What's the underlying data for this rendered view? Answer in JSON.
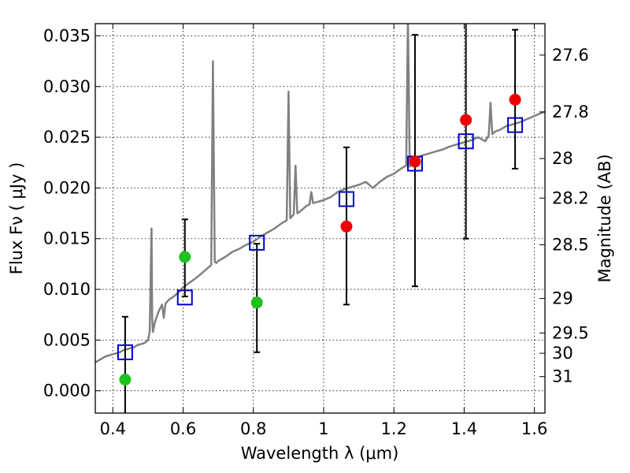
{
  "chart_data": {
    "type": "scatter",
    "title": "",
    "xlabel": "Wavelength  λ (μm)",
    "ylabel": "Flux  Fν  ( μJy )",
    "y2label": "Magnitude (AB)",
    "xlim": [
      0.35,
      1.63
    ],
    "ylim": [
      -0.0022,
      0.0362
    ],
    "grid": true,
    "x_ticks": [
      {
        "value": 0.4,
        "label": "0.4"
      },
      {
        "value": 0.6,
        "label": "0.6"
      },
      {
        "value": 0.8,
        "label": "0.8"
      },
      {
        "value": 1.0,
        "label": "1"
      },
      {
        "value": 1.2,
        "label": "1.2"
      },
      {
        "value": 1.4,
        "label": "1.4"
      },
      {
        "value": 1.6,
        "label": "1.6"
      }
    ],
    "y_ticks": [
      {
        "value": 0.0,
        "label": "0.000"
      },
      {
        "value": 0.005,
        "label": "0.005"
      },
      {
        "value": 0.01,
        "label": "0.010"
      },
      {
        "value": 0.015,
        "label": "0.015"
      },
      {
        "value": 0.02,
        "label": "0.020"
      },
      {
        "value": 0.025,
        "label": "0.025"
      },
      {
        "value": 0.03,
        "label": "0.030"
      },
      {
        "value": 0.035,
        "label": "0.035"
      }
    ],
    "mag_ticks": [
      {
        "flux": 0.0331,
        "label": "27.6"
      },
      {
        "flux": 0.0275,
        "label": "27.8"
      },
      {
        "flux": 0.0229,
        "label": "28"
      },
      {
        "flux": 0.019,
        "label": "28.2"
      },
      {
        "flux": 0.0144,
        "label": "28.5"
      },
      {
        "flux": 0.0091,
        "label": "29"
      },
      {
        "flux": 0.0057,
        "label": "29.5"
      },
      {
        "flux": 0.0037,
        "label": "30"
      },
      {
        "flux": 0.0014,
        "label": "31"
      }
    ],
    "colors": {
      "spectrum": "#808080",
      "model_points": "#0000cc",
      "green_points": "#1fc11f",
      "red_points": "#ee0000",
      "error_bars": "#000000"
    },
    "spectrum": {
      "x": [
        0.35,
        0.36,
        0.37,
        0.38,
        0.39,
        0.4,
        0.41,
        0.42,
        0.43,
        0.44,
        0.45,
        0.46,
        0.47,
        0.48,
        0.49,
        0.5,
        0.505,
        0.51,
        0.512,
        0.514,
        0.52,
        0.53,
        0.54,
        0.545,
        0.55,
        0.56,
        0.57,
        0.58,
        0.59,
        0.6,
        0.62,
        0.64,
        0.66,
        0.68,
        0.685,
        0.69,
        0.695,
        0.7,
        0.72,
        0.74,
        0.76,
        0.78,
        0.8,
        0.82,
        0.84,
        0.86,
        0.88,
        0.895,
        0.9,
        0.905,
        0.91,
        0.915,
        0.92,
        0.925,
        0.93,
        0.95,
        0.96,
        0.965,
        0.97,
        1.0,
        1.02,
        1.04,
        1.06,
        1.08,
        1.1,
        1.12,
        1.14,
        1.16,
        1.18,
        1.2,
        1.22,
        1.235,
        1.24,
        1.245,
        1.25,
        1.26,
        1.28,
        1.3,
        1.32,
        1.34,
        1.36,
        1.38,
        1.4,
        1.42,
        1.44,
        1.46,
        1.47,
        1.475,
        1.48,
        1.49,
        1.5,
        1.52,
        1.54,
        1.56,
        1.58,
        1.6,
        1.62,
        1.63
      ],
      "y": [
        0.0028,
        0.003,
        0.0032,
        0.0034,
        0.0035,
        0.0036,
        0.0037,
        0.0038,
        0.004,
        0.0041,
        0.0042,
        0.0043,
        0.0045,
        0.0046,
        0.0047,
        0.005,
        0.0058,
        0.016,
        0.007,
        0.0058,
        0.0068,
        0.0078,
        0.0085,
        0.0072,
        0.0086,
        0.009,
        0.0092,
        0.0095,
        0.0098,
        0.0102,
        0.0107,
        0.0112,
        0.0118,
        0.0124,
        0.0325,
        0.0127,
        0.0126,
        0.0128,
        0.0132,
        0.0137,
        0.014,
        0.0144,
        0.0147,
        0.0152,
        0.0156,
        0.016,
        0.0165,
        0.0168,
        0.0295,
        0.017,
        0.0172,
        0.0174,
        0.0222,
        0.0175,
        0.0176,
        0.0182,
        0.0184,
        0.0196,
        0.0185,
        0.0188,
        0.0191,
        0.0196,
        0.0199,
        0.0201,
        0.0203,
        0.0206,
        0.02,
        0.0206,
        0.0211,
        0.0214,
        0.0219,
        0.0222,
        0.037,
        0.0221,
        0.0225,
        0.0228,
        0.0232,
        0.0234,
        0.0236,
        0.0238,
        0.0241,
        0.0243,
        0.0245,
        0.0247,
        0.025,
        0.0246,
        0.0252,
        0.0284,
        0.0253,
        0.0256,
        0.0257,
        0.0261,
        0.0263,
        0.0265,
        0.0268,
        0.0271,
        0.0274,
        0.0275
      ]
    },
    "model_points": {
      "x": [
        0.435,
        0.605,
        0.81,
        1.065,
        1.26,
        1.405,
        1.545
      ],
      "y": [
        0.0038,
        0.0092,
        0.0146,
        0.0189,
        0.0224,
        0.0246,
        0.0262
      ]
    },
    "green_points": {
      "x": [
        0.435,
        0.605,
        0.81
      ],
      "y": [
        0.0011,
        0.0132,
        0.0087
      ]
    },
    "red_points": {
      "x": [
        1.065,
        1.26,
        1.405,
        1.545
      ],
      "y": [
        0.0162,
        0.0226,
        0.0267,
        0.0287
      ]
    },
    "error_bars": [
      {
        "x": 0.435,
        "low": -0.0025,
        "high": 0.0073
      },
      {
        "x": 0.605,
        "low": 0.0093,
        "high": 0.0169
      },
      {
        "x": 0.81,
        "low": 0.0038,
        "high": 0.0145
      },
      {
        "x": 1.065,
        "low": 0.0085,
        "high": 0.024
      },
      {
        "x": 1.26,
        "low": 0.0103,
        "high": 0.0351
      },
      {
        "x": 1.405,
        "low": 0.015,
        "high": 0.037
      },
      {
        "x": 1.545,
        "low": 0.0219,
        "high": 0.0356
      }
    ]
  }
}
